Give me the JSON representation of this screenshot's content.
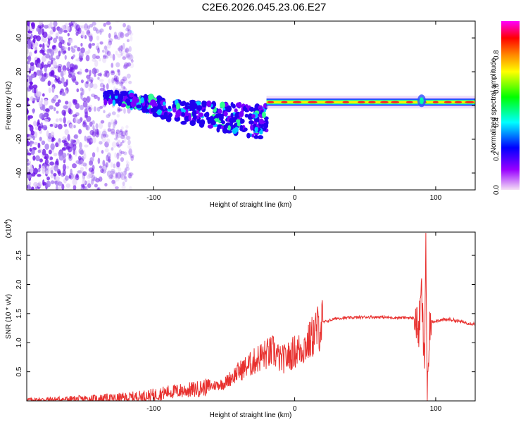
{
  "title": "C2E6.2026.045.23.06.E27",
  "chart_data": [
    {
      "type": "heatmap",
      "xlabel": "Height of straight line (km)",
      "ylabel": "Frequency (Hz)",
      "xlim": [
        -190,
        128
      ],
      "ylim": [
        -50,
        50
      ],
      "xticks": [
        -100,
        0,
        100
      ],
      "xtick_labels": [
        "-100",
        "0",
        "100"
      ],
      "yticks": [
        -40,
        -20,
        0,
        20,
        40
      ],
      "ytick_labels": [
        "-40",
        "-20",
        "0",
        "20",
        "40"
      ],
      "colorbar": {
        "label": "Normalized spectral amplitude",
        "range": [
          0,
          1
        ],
        "ticks": [
          0.0,
          0.2,
          0.4,
          0.6,
          0.8
        ],
        "tick_labels": [
          "0.0",
          "0.2",
          "0.4",
          "0.6",
          "0.8"
        ],
        "colormap": [
          "#f5e0f5",
          "#9900ff",
          "#0000ff",
          "#00ffff",
          "#00ff00",
          "#ffff00",
          "#ff8800",
          "#ff0000",
          "#ff00ff"
        ]
      },
      "features": [
        {
          "region": "noise",
          "x_range": [
            -190,
            -115
          ],
          "y_range": [
            -50,
            50
          ],
          "amplitude": 0.15
        },
        {
          "region": "turbulent_band",
          "x_range": [
            -135,
            -20
          ],
          "center_hz": [
            5,
            3,
            -3,
            -5,
            -8,
            -10
          ],
          "amplitude": 0.45
        },
        {
          "region": "stable_line",
          "x_range": [
            -20,
            128
          ],
          "center_hz": 2,
          "amplitude": 0.9
        }
      ]
    },
    {
      "type": "line",
      "xlabel": "Height of straight line (km)",
      "ylabel": "SNR (10 * v/v)",
      "exponent_label": "(x10",
      "exponent_power": "4",
      "xlim": [
        -190,
        128
      ],
      "ylim": [
        0,
        2.9
      ],
      "xticks": [
        -100,
        0,
        100
      ],
      "xtick_labels": [
        "-100",
        "0",
        "100"
      ],
      "yticks": [
        0.5,
        1.0,
        1.5,
        2.0,
        2.5
      ],
      "ytick_labels": [
        "0.5",
        "1.0",
        "1.5",
        "2.0",
        "2.5"
      ],
      "color": "#e8302e",
      "series": [
        {
          "name": "SNR",
          "x": [
            -190,
            -150,
            -120,
            -100,
            -90,
            -70,
            -60,
            -50,
            -40,
            -30,
            -25,
            -20,
            -15,
            -10,
            -5,
            0,
            5,
            10,
            15,
            20,
            30,
            40,
            50,
            60,
            70,
            80,
            85,
            88,
            90,
            92,
            93,
            94,
            96,
            100,
            110,
            120,
            128
          ],
          "y": [
            0.02,
            0.03,
            0.05,
            0.1,
            0.15,
            0.2,
            0.25,
            0.3,
            0.5,
            0.65,
            0.75,
            0.8,
            0.85,
            0.7,
            0.75,
            0.85,
            0.9,
            1.0,
            1.2,
            1.35,
            1.42,
            1.43,
            1.44,
            1.44,
            1.43,
            1.43,
            1.42,
            1.2,
            1.9,
            0.5,
            2.85,
            0.0,
            1.35,
            1.38,
            1.4,
            1.35,
            1.32
          ]
        }
      ]
    }
  ]
}
